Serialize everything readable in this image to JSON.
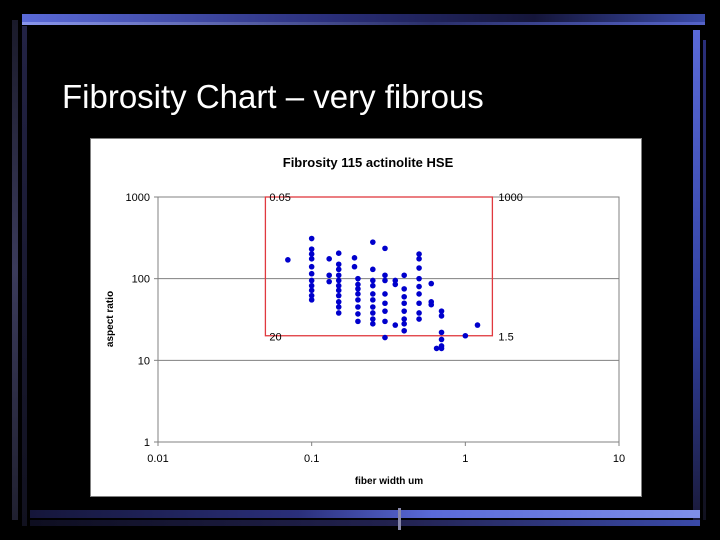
{
  "slide": {
    "title": "Fibrosity Chart – very fibrous"
  },
  "colors": {
    "background": "#000000",
    "bar_dark": "#1a1a3a",
    "bar_blue": "#4f5fd0",
    "bar_light": "#7f8fe8",
    "point": "#0000cc",
    "box": "#e0393e"
  },
  "chart_data": {
    "type": "scatter",
    "title": "Fibrosity 115 actinolite HSE",
    "xlabel": "fiber width um",
    "ylabel": "aspect ratio",
    "xscale": "log",
    "yscale": "log",
    "xlim": [
      0.01,
      10
    ],
    "ylim": [
      1,
      1000
    ],
    "xticks": [
      0.01,
      0.1,
      1,
      10
    ],
    "xtick_labels": [
      "0.01",
      "0.1",
      "1",
      "10"
    ],
    "yticks": [
      1,
      10,
      100,
      1000
    ],
    "ytick_labels": [
      "1",
      "10",
      "100",
      "1000"
    ],
    "grid": "horizontal",
    "legend": "none",
    "region_box": {
      "x": [
        0.05,
        1.5
      ],
      "y": [
        20,
        1000
      ],
      "corner_labels": {
        "top_left": "0.05",
        "top_right": "1000",
        "bottom_left": "20",
        "bottom_right": "1.5"
      }
    },
    "points": [
      [
        0.07,
        170
      ],
      [
        0.1,
        310
      ],
      [
        0.1,
        230
      ],
      [
        0.1,
        200
      ],
      [
        0.1,
        175
      ],
      [
        0.1,
        140
      ],
      [
        0.1,
        115
      ],
      [
        0.1,
        95
      ],
      [
        0.1,
        82
      ],
      [
        0.1,
        72
      ],
      [
        0.1,
        62
      ],
      [
        0.1,
        55
      ],
      [
        0.13,
        175
      ],
      [
        0.13,
        110
      ],
      [
        0.13,
        92
      ],
      [
        0.15,
        205
      ],
      [
        0.15,
        150
      ],
      [
        0.15,
        130
      ],
      [
        0.15,
        110
      ],
      [
        0.15,
        95
      ],
      [
        0.15,
        82
      ],
      [
        0.15,
        72
      ],
      [
        0.15,
        62
      ],
      [
        0.15,
        52
      ],
      [
        0.15,
        45
      ],
      [
        0.15,
        38
      ],
      [
        0.19,
        180
      ],
      [
        0.19,
        140
      ],
      [
        0.2,
        100
      ],
      [
        0.2,
        85
      ],
      [
        0.2,
        75
      ],
      [
        0.2,
        65
      ],
      [
        0.2,
        55
      ],
      [
        0.2,
        45
      ],
      [
        0.2,
        37
      ],
      [
        0.2,
        30
      ],
      [
        0.25,
        280
      ],
      [
        0.25,
        130
      ],
      [
        0.25,
        95
      ],
      [
        0.25,
        82
      ],
      [
        0.25,
        65
      ],
      [
        0.25,
        55
      ],
      [
        0.25,
        45
      ],
      [
        0.25,
        38
      ],
      [
        0.25,
        32
      ],
      [
        0.25,
        28
      ],
      [
        0.3,
        235
      ],
      [
        0.3,
        110
      ],
      [
        0.3,
        95
      ],
      [
        0.3,
        65
      ],
      [
        0.3,
        50
      ],
      [
        0.3,
        40
      ],
      [
        0.3,
        30
      ],
      [
        0.3,
        19
      ],
      [
        0.35,
        95
      ],
      [
        0.35,
        85
      ],
      [
        0.35,
        27
      ],
      [
        0.4,
        110
      ],
      [
        0.4,
        75
      ],
      [
        0.4,
        60
      ],
      [
        0.4,
        50
      ],
      [
        0.4,
        40
      ],
      [
        0.4,
        32
      ],
      [
        0.4,
        28
      ],
      [
        0.4,
        23
      ],
      [
        0.5,
        200
      ],
      [
        0.5,
        175
      ],
      [
        0.5,
        135
      ],
      [
        0.5,
        100
      ],
      [
        0.5,
        80
      ],
      [
        0.5,
        65
      ],
      [
        0.5,
        50
      ],
      [
        0.5,
        38
      ],
      [
        0.5,
        32
      ],
      [
        0.6,
        87
      ],
      [
        0.6,
        52
      ],
      [
        0.6,
        48
      ],
      [
        0.7,
        40
      ],
      [
        0.7,
        35
      ],
      [
        0.7,
        22
      ],
      [
        0.7,
        18
      ],
      [
        0.7,
        15
      ],
      [
        0.7,
        14
      ],
      [
        0.65,
        14
      ],
      [
        1.0,
        20
      ],
      [
        1.2,
        27
      ]
    ]
  }
}
